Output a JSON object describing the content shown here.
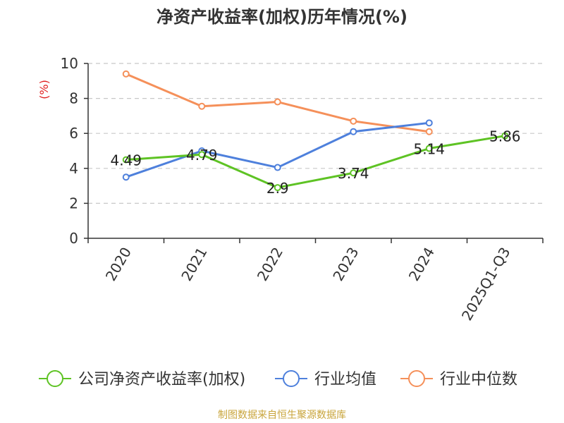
{
  "chart_data": {
    "type": "line",
    "title": "净资产收益率(加权)历年情况(%)",
    "ylabel": "(%)",
    "xlabel": "",
    "categories": [
      "2020",
      "2021",
      "2022",
      "2023",
      "2024",
      "2025Q1-Q3"
    ],
    "ylim": [
      0,
      10
    ],
    "yticks": [
      0,
      2,
      4,
      6,
      8,
      10
    ],
    "grid": true,
    "legend_position": "bottom",
    "series": [
      {
        "name": "公司净资产收益率(加权)",
        "color": "#5ec324",
        "values": [
          4.49,
          4.79,
          2.9,
          3.74,
          5.14,
          5.86
        ],
        "labels": [
          "4.49",
          "4.79",
          "2.9",
          "3.74",
          "5.14",
          "5.86"
        ]
      },
      {
        "name": "行业均值",
        "color": "#4e80dc",
        "values": [
          3.5,
          5.0,
          4.05,
          6.1,
          6.6,
          null
        ]
      },
      {
        "name": "行业中位数",
        "color": "#f5905a",
        "values": [
          9.4,
          7.55,
          7.8,
          6.7,
          6.1,
          null
        ]
      }
    ]
  },
  "footer": {
    "credit": "制图数据来自恒生聚源数据库"
  }
}
